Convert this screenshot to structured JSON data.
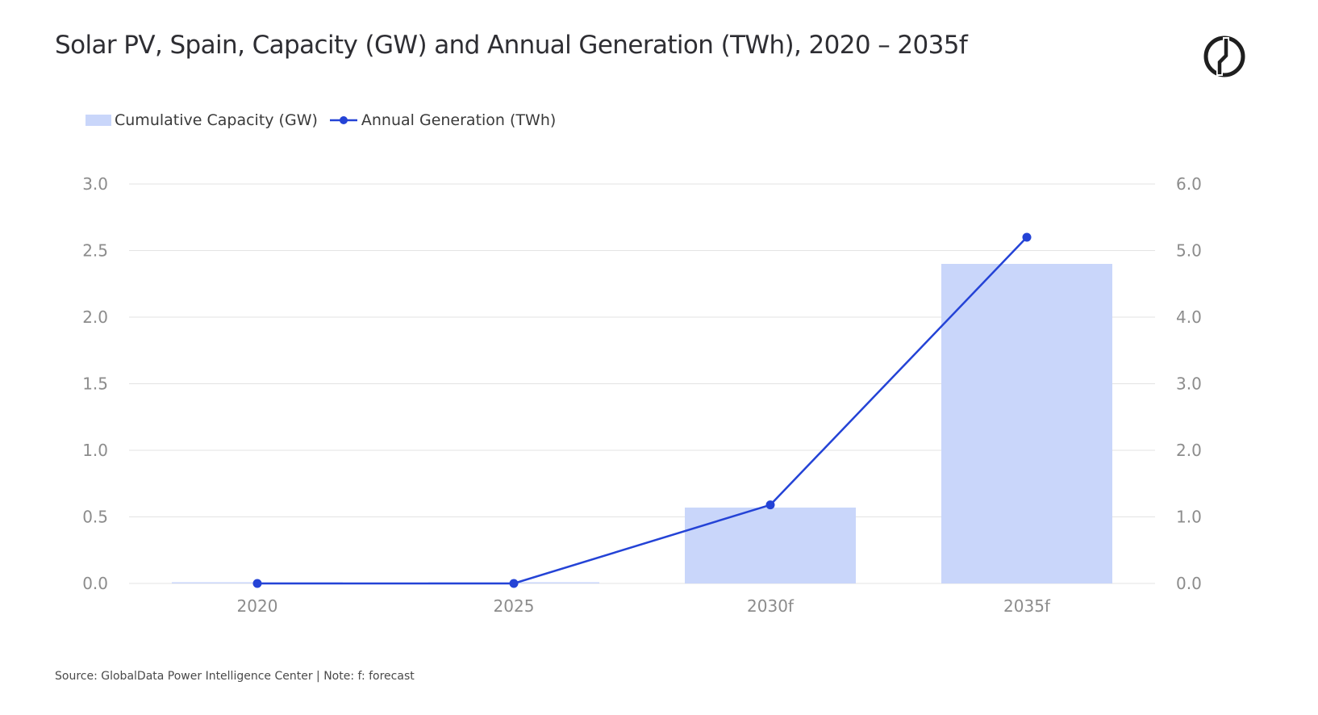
{
  "title": "Solar PV, Spain, Capacity (GW) and Annual Generation (TWh), 2020 – 2035f",
  "source": "Source: GlobalData Power Intelligence Center | Note: f: forecast",
  "logo_icon": "globaldata-logo-icon",
  "colors": {
    "bar": "#c9d6fa",
    "line": "#2443d6",
    "grid": "#e3e3e3",
    "tick": "#8c8c8c"
  },
  "chart_data": {
    "type": "bar+line",
    "categories": [
      "2020",
      "2025",
      "2030f",
      "2035f"
    ],
    "series": [
      {
        "name": "Cumulative Capacity (GW)",
        "type": "bar",
        "axis": "left",
        "values": [
          0.0,
          0.0,
          0.57,
          2.4
        ]
      },
      {
        "name": "Annual Generation (TWh)",
        "type": "line",
        "axis": "right",
        "values": [
          0.0,
          0.0,
          1.18,
          5.2
        ]
      }
    ],
    "y_left": {
      "ylim": [
        0,
        3.0
      ],
      "ticks": [
        "0.0",
        "0.5",
        "1.0",
        "1.5",
        "2.0",
        "2.5",
        "3.0"
      ]
    },
    "y_right": {
      "ylim": [
        0,
        6.0
      ],
      "ticks": [
        "0.0",
        "1.0",
        "2.0",
        "3.0",
        "4.0",
        "5.0",
        "6.0"
      ]
    },
    "grid": true,
    "legend": "top-left"
  }
}
